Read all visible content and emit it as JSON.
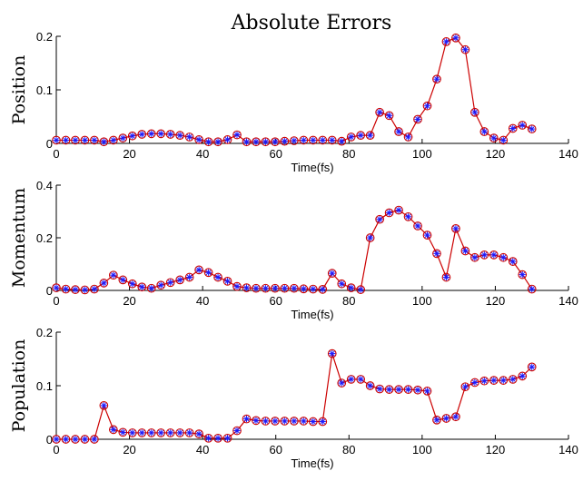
{
  "chart_data": {
    "title": "Absolute Errors",
    "type": "line",
    "line_color": "#cc0000",
    "marker_outer_color": "#cc0000",
    "marker_inner_color": "#1a1aff",
    "grid": false,
    "subplots": [
      {
        "ylabel": "Position",
        "xlabel": "Time(fs)",
        "xlim": [
          0,
          140
        ],
        "ylim": [
          0,
          0.2
        ],
        "xticks": [
          "0",
          "20",
          "40",
          "60",
          "80",
          "100",
          "120",
          "140"
        ],
        "yticks": [
          "0",
          "0.1",
          "0.2"
        ],
        "x": [
          0,
          2.6,
          5.2,
          7.8,
          10.4,
          13,
          15.6,
          18.2,
          20.8,
          23.4,
          26,
          28.6,
          31.2,
          33.8,
          36.4,
          39,
          41.6,
          44.2,
          46.8,
          49.4,
          52,
          54.6,
          57.2,
          59.8,
          62.4,
          65,
          67.6,
          70.2,
          72.8,
          75.4,
          78,
          80.6,
          83.2,
          85.8,
          88.4,
          91,
          93.6,
          96.2,
          98.8,
          101.4,
          104,
          106.6,
          109.2,
          111.8,
          114.4,
          117,
          119.6,
          122.2,
          124.8,
          127.4,
          130
        ],
        "values": [
          0.006,
          0.006,
          0.006,
          0.006,
          0.006,
          0.003,
          0.006,
          0.01,
          0.014,
          0.017,
          0.018,
          0.018,
          0.017,
          0.015,
          0.012,
          0.007,
          0.003,
          0.003,
          0.007,
          0.016,
          0.003,
          0.003,
          0.003,
          0.003,
          0.004,
          0.005,
          0.006,
          0.006,
          0.006,
          0.006,
          0.004,
          0.012,
          0.015,
          0.015,
          0.058,
          0.052,
          0.022,
          0.012,
          0.045,
          0.07,
          0.12,
          0.19,
          0.197,
          0.175,
          0.058,
          0.022,
          0.01,
          0.006,
          0.028,
          0.034,
          0.027
        ]
      },
      {
        "ylabel": "Momentum",
        "xlabel": "Time(fs)",
        "xlim": [
          0,
          140
        ],
        "ylim": [
          0,
          0.4
        ],
        "xticks": [
          "0",
          "20",
          "40",
          "60",
          "80",
          "100",
          "120",
          "140"
        ],
        "yticks": [
          "0",
          "0.2",
          "0.4"
        ],
        "x": [
          0,
          2.6,
          5.2,
          7.8,
          10.4,
          13,
          15.6,
          18.2,
          20.8,
          23.4,
          26,
          28.6,
          31.2,
          33.8,
          36.4,
          39,
          41.6,
          44.2,
          46.8,
          49.4,
          52,
          54.6,
          57.2,
          59.8,
          62.4,
          65,
          67.6,
          70.2,
          72.8,
          75.4,
          78,
          80.6,
          83.2,
          85.8,
          88.4,
          91,
          93.6,
          96.2,
          98.8,
          101.4,
          104,
          106.6,
          109.2,
          111.8,
          114.4,
          117,
          119.6,
          122.2,
          124.8,
          127.4,
          130
        ],
        "values": [
          0.01,
          0.005,
          0.003,
          0.002,
          0.005,
          0.028,
          0.058,
          0.04,
          0.025,
          0.013,
          0.008,
          0.02,
          0.03,
          0.04,
          0.05,
          0.078,
          0.068,
          0.05,
          0.035,
          0.015,
          0.01,
          0.008,
          0.008,
          0.008,
          0.008,
          0.008,
          0.006,
          0.005,
          0.004,
          0.065,
          0.025,
          0.01,
          0.003,
          0.2,
          0.27,
          0.295,
          0.305,
          0.28,
          0.245,
          0.21,
          0.14,
          0.05,
          0.235,
          0.15,
          0.125,
          0.135,
          0.135,
          0.125,
          0.11,
          0.06,
          0.005
        ]
      },
      {
        "ylabel": "Population",
        "xlabel": "Time(fs)",
        "xlim": [
          0,
          140
        ],
        "ylim": [
          0,
          0.2
        ],
        "xticks": [
          "0",
          "20",
          "40",
          "60",
          "80",
          "100",
          "120",
          "140"
        ],
        "yticks": [
          "0",
          "0.1",
          "0.2"
        ],
        "x": [
          0,
          2.6,
          5.2,
          7.8,
          10.4,
          13,
          15.6,
          18.2,
          20.8,
          23.4,
          26,
          28.6,
          31.2,
          33.8,
          36.4,
          39,
          41.6,
          44.2,
          46.8,
          49.4,
          52,
          54.6,
          57.2,
          59.8,
          62.4,
          65,
          67.6,
          70.2,
          72.8,
          75.4,
          78,
          80.6,
          83.2,
          85.8,
          88.4,
          91,
          93.6,
          96.2,
          98.8,
          101.4,
          104,
          106.6,
          109.2,
          111.8,
          114.4,
          117,
          119.6,
          122.2,
          124.8,
          127.4,
          130
        ],
        "values": [
          0.0,
          0.0,
          0.0,
          0.0,
          0.0,
          0.063,
          0.018,
          0.013,
          0.012,
          0.012,
          0.012,
          0.012,
          0.012,
          0.012,
          0.012,
          0.01,
          0.002,
          0.002,
          0.002,
          0.016,
          0.038,
          0.035,
          0.034,
          0.034,
          0.034,
          0.034,
          0.034,
          0.033,
          0.033,
          0.16,
          0.105,
          0.112,
          0.112,
          0.1,
          0.094,
          0.093,
          0.093,
          0.093,
          0.092,
          0.09,
          0.036,
          0.039,
          0.042,
          0.098,
          0.106,
          0.109,
          0.11,
          0.11,
          0.112,
          0.118,
          0.135
        ]
      }
    ]
  }
}
